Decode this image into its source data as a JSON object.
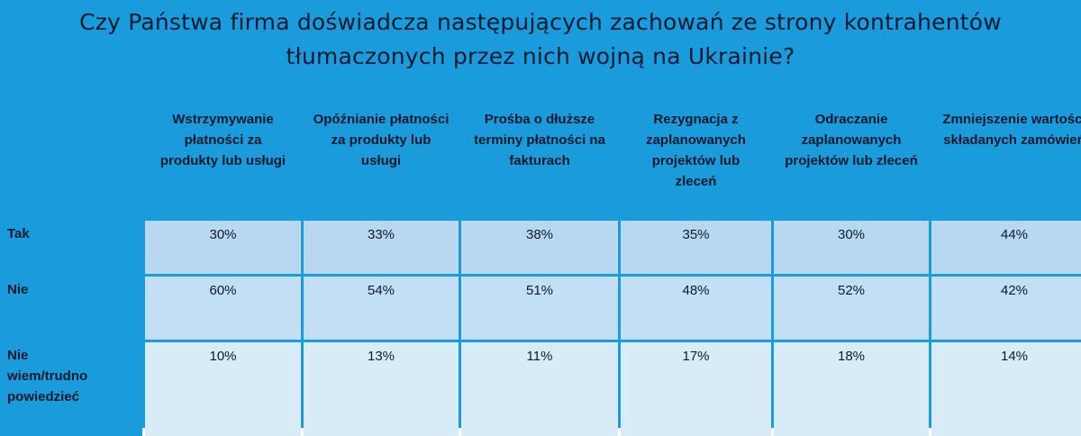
{
  "chart_data": {
    "type": "table",
    "title": "Czy Państwa firma doświadcza następujących zachowań ze strony kontrahentów tłumaczonych przez nich wojną na Ukrainie?",
    "columns": [
      "Wstrzymywanie płatności za produkty lub usługi",
      "Opóźnianie płatności za produkty lub usługi",
      "Prośba o dłuższe terminy płatności na fakturach",
      "Rezygnacja z zaplanowanych projektów lub zleceń",
      "Odraczanie zaplanowanych projektów lub zleceń",
      "Zmniejszenie wartości składanych zamówień"
    ],
    "rows": [
      {
        "label": "Tak",
        "values": [
          "30%",
          "33%",
          "38%",
          "35%",
          "30%",
          "44%"
        ]
      },
      {
        "label": "Nie",
        "values": [
          "60%",
          "54%",
          "51%",
          "48%",
          "52%",
          "42%"
        ]
      },
      {
        "label": "Nie wiem/trudno powiedzieć",
        "values": [
          "10%",
          "13%",
          "11%",
          "17%",
          "18%",
          "14%"
        ]
      }
    ]
  },
  "colors": {
    "header_bg": "#1a9bdc",
    "row_tak_bg": "#b8d8f2",
    "row_nie_bg": "#c2dff5",
    "row_niewiem_bg": "#d8ecf8",
    "text": "#0d1a2b"
  }
}
